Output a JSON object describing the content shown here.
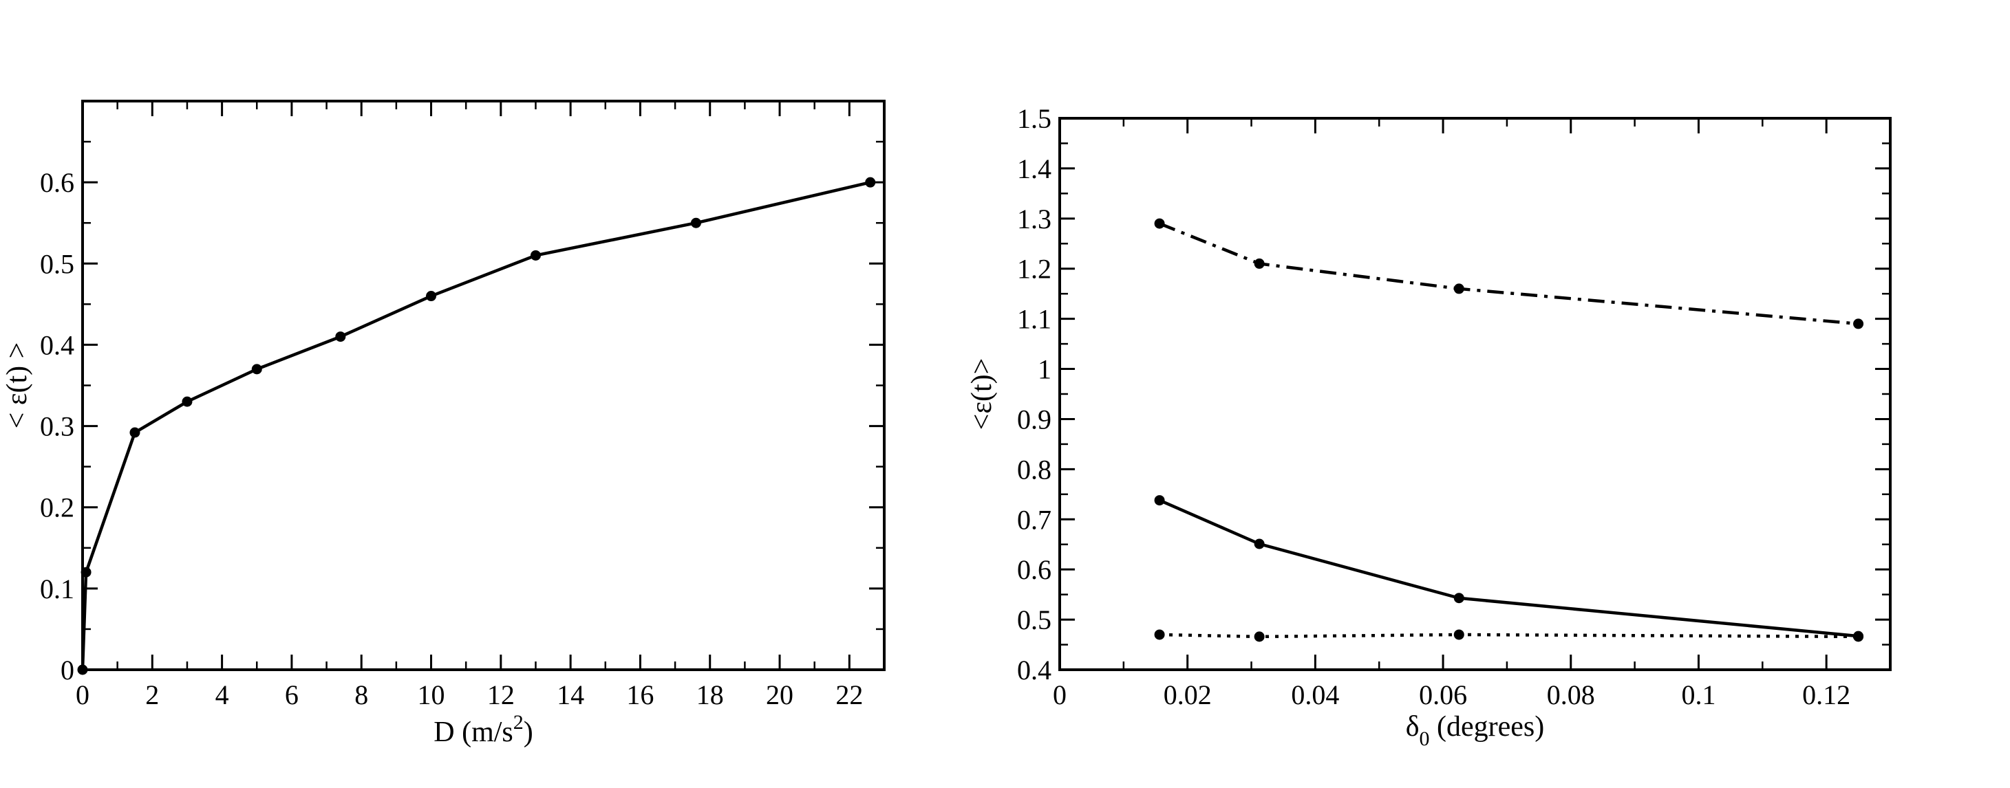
{
  "chart_data": [
    {
      "type": "line",
      "title": "",
      "xlabel": "D (m/s",
      "xlabel_sup": "2",
      "xlabel_tail": ")",
      "ylabel": "< ε(t) >",
      "xlim": [
        0,
        23
      ],
      "ylim": [
        0,
        0.7
      ],
      "xticks": [
        0,
        2,
        4,
        6,
        8,
        10,
        12,
        14,
        16,
        18,
        20,
        22
      ],
      "xtick_labels": [
        "0",
        "2",
        "4",
        "6",
        "8",
        "10",
        "12",
        "14",
        "16",
        "18",
        "20",
        "22"
      ],
      "yticks": [
        0,
        0.1,
        0.2,
        0.3,
        0.4,
        0.5,
        0.6
      ],
      "ytick_labels": [
        "0",
        "0.1",
        "0.2",
        "0.3",
        "0.4",
        "0.5",
        "0.6"
      ],
      "grid": false,
      "series": [
        {
          "style": "solid",
          "x": [
            0,
            0.1,
            1.5,
            3.0,
            5.0,
            7.4,
            10.0,
            13.0,
            17.6,
            22.6
          ],
          "y": [
            0.0,
            0.12,
            0.292,
            0.33,
            0.37,
            0.41,
            0.46,
            0.51,
            0.55,
            0.6
          ]
        }
      ]
    },
    {
      "type": "line",
      "title": "",
      "xlabel": "δ",
      "xlabel_sub": "0",
      "xlabel_tail": " (degrees)",
      "ylabel": "<ε(t)>",
      "xlim": [
        0,
        0.13
      ],
      "ylim": [
        0.4,
        1.5
      ],
      "xticks": [
        0,
        0.02,
        0.04,
        0.06,
        0.08,
        0.1,
        0.12
      ],
      "xtick_labels": [
        "0",
        "0.02",
        "0.04",
        "0.06",
        "0.08",
        "0.1",
        "0.12"
      ],
      "yticks": [
        0.4,
        0.5,
        0.6,
        0.7,
        0.8,
        0.9,
        1.0,
        1.1,
        1.2,
        1.3,
        1.4,
        1.5
      ],
      "ytick_labels": [
        "0.4",
        "0.5",
        "0.6",
        "0.7",
        "0.8",
        "0.9",
        "1",
        "1.1",
        "1.2",
        "1.3",
        "1.4",
        "1.5"
      ],
      "grid": false,
      "series": [
        {
          "style": "dashdot",
          "x": [
            0.015625,
            0.03125,
            0.0625,
            0.125
          ],
          "y": [
            1.29,
            1.21,
            1.16,
            1.09
          ]
        },
        {
          "style": "solid",
          "x": [
            0.015625,
            0.03125,
            0.0625,
            0.125
          ],
          "y": [
            0.738,
            0.651,
            0.543,
            0.467
          ]
        },
        {
          "style": "dotted",
          "x": [
            0.015625,
            0.03125,
            0.0625,
            0.125
          ],
          "y": [
            0.47,
            0.466,
            0.47,
            0.466
          ]
        }
      ]
    }
  ]
}
